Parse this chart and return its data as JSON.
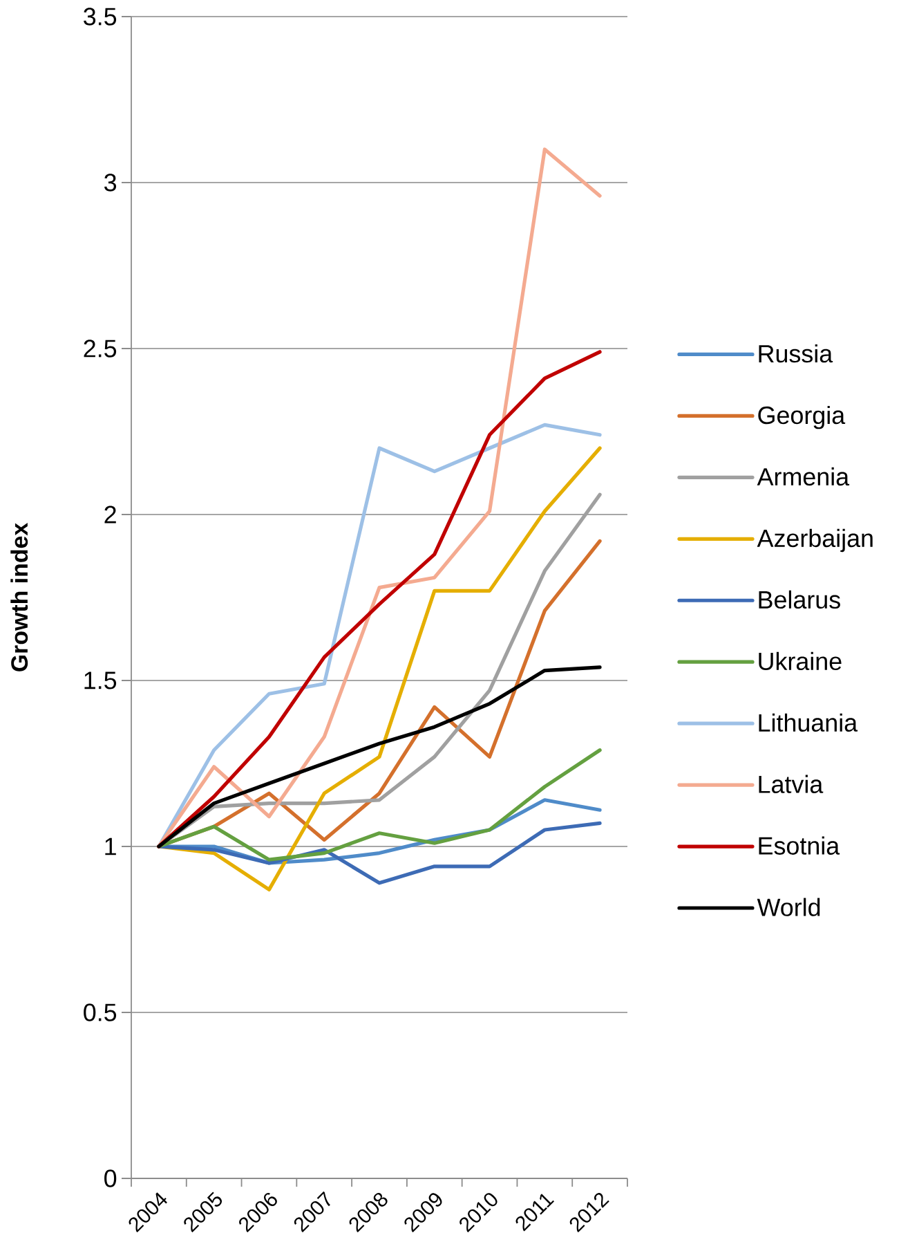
{
  "chart_data": {
    "type": "line",
    "ylabel": "Growth index",
    "categories": [
      "2004",
      "2005",
      "2006",
      "2007",
      "2008",
      "2009",
      "2010",
      "2011",
      "2012"
    ],
    "series": [
      {
        "name": "Russia",
        "color": "#4f8bc9",
        "values": [
          1,
          1.0,
          0.95,
          0.96,
          0.98,
          1.02,
          1.05,
          1.14,
          1.11
        ]
      },
      {
        "name": "Georgia",
        "color": "#d4702c",
        "values": [
          1,
          1.06,
          1.16,
          1.02,
          1.16,
          1.42,
          1.27,
          1.71,
          1.92
        ]
      },
      {
        "name": "Armenia",
        "color": "#a0a0a0",
        "values": [
          1,
          1.12,
          1.13,
          1.13,
          1.14,
          1.27,
          1.47,
          1.83,
          2.06
        ]
      },
      {
        "name": "Azerbaijan",
        "color": "#e5ae00",
        "values": [
          1,
          0.98,
          0.87,
          1.16,
          1.27,
          1.77,
          1.77,
          2.01,
          2.2
        ]
      },
      {
        "name": "Belarus",
        "color": "#3d6bb5",
        "values": [
          1,
          0.99,
          0.95,
          0.99,
          0.89,
          0.94,
          0.94,
          1.05,
          1.07
        ]
      },
      {
        "name": "Ukraine",
        "color": "#64a040",
        "values": [
          1,
          1.06,
          0.96,
          0.98,
          1.04,
          1.01,
          1.05,
          1.18,
          1.29
        ]
      },
      {
        "name": "Lithuania",
        "color": "#9dc0e6",
        "values": [
          1,
          1.29,
          1.46,
          1.49,
          2.2,
          2.13,
          2.2,
          2.27,
          2.24
        ]
      },
      {
        "name": "Latvia",
        "color": "#f4aa90",
        "values": [
          1,
          1.24,
          1.09,
          1.33,
          1.78,
          1.81,
          2.01,
          3.1,
          2.96
        ]
      },
      {
        "name": "Esotnia",
        "color": "#c00000",
        "values": [
          1,
          1.15,
          1.33,
          1.57,
          1.73,
          1.88,
          2.24,
          2.41,
          2.49
        ]
      },
      {
        "name": "World",
        "color": "#000000",
        "values": [
          1,
          1.13,
          1.19,
          1.25,
          1.31,
          1.36,
          1.43,
          1.53,
          1.54
        ]
      }
    ],
    "ylim": [
      0,
      3.5
    ],
    "yticks": [
      0,
      0.5,
      1,
      1.5,
      2,
      2.5,
      3,
      3.5
    ],
    "grid": "y",
    "legend": "right"
  }
}
